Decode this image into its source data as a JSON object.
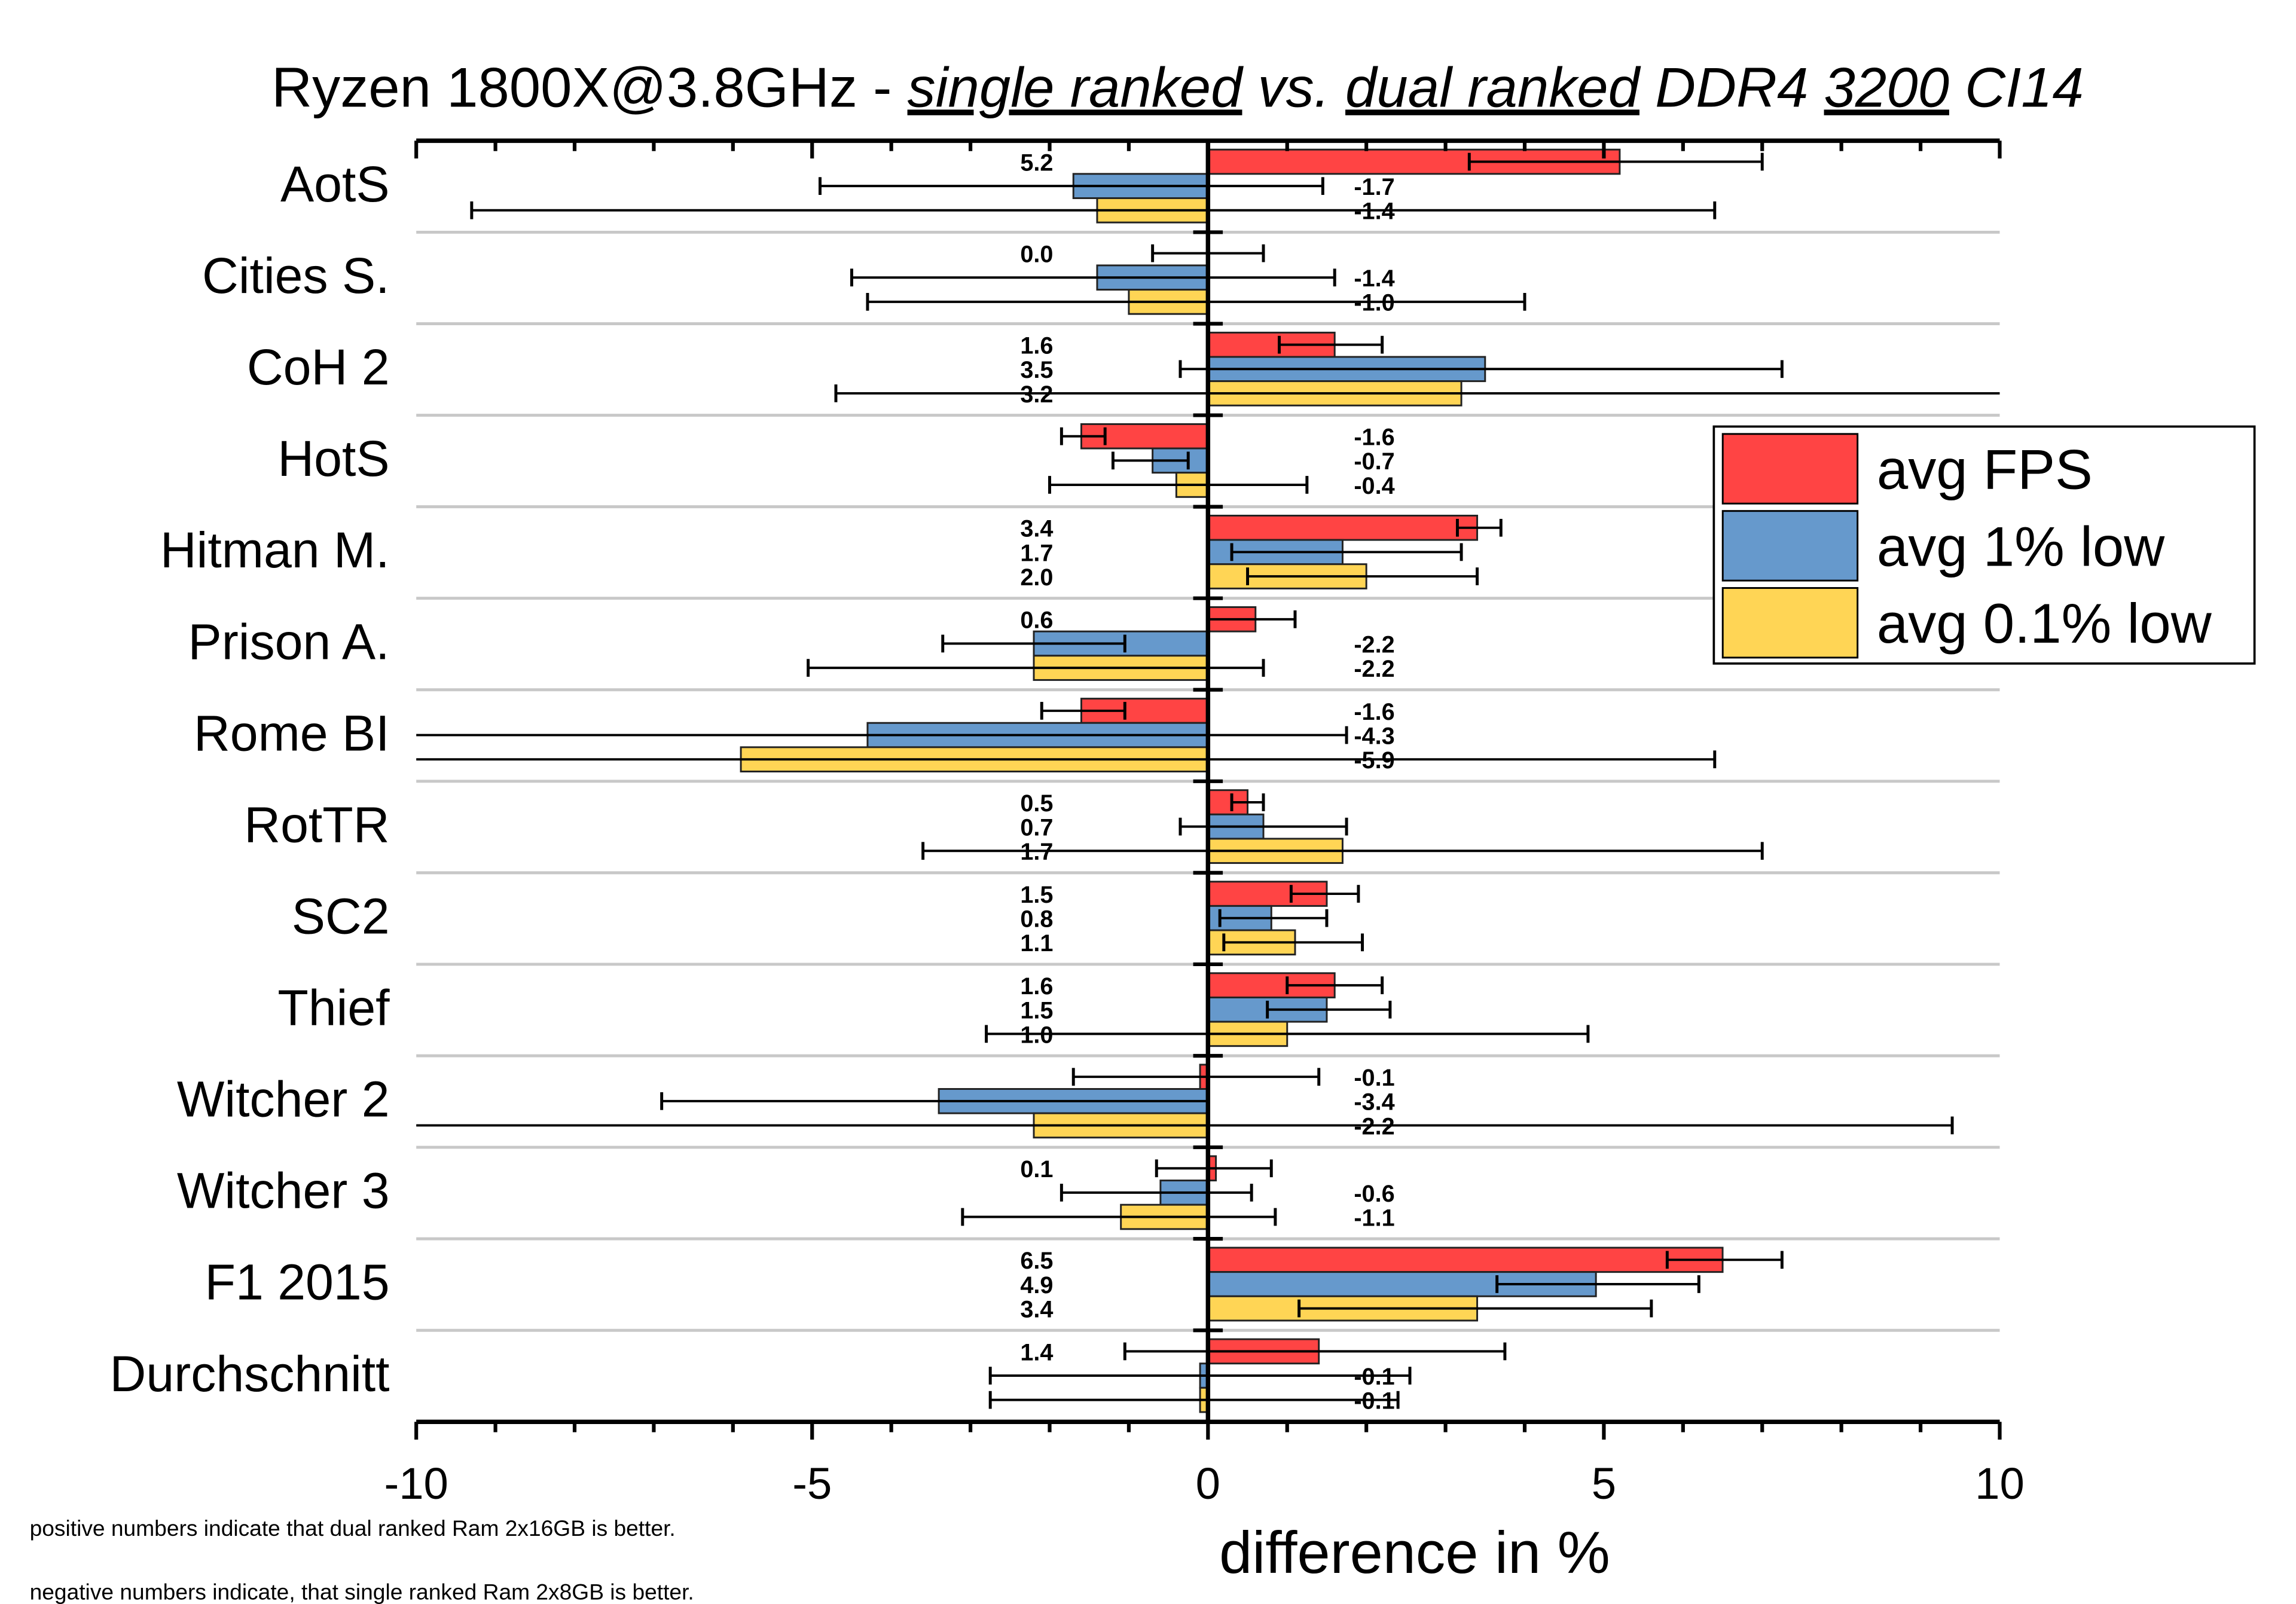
{
  "chart_data": {
    "type": "bar",
    "orientation": "horizontal",
    "title": {
      "prefix": "Ryzen 1800X@3.8GHz - ",
      "part1": "single ranked",
      "part2": " vs. ",
      "part3": "dual ranked",
      "part4": " DDR4 ",
      "part5": "3200",
      "part6": " CI14"
    },
    "xlabel": "difference in %",
    "xlim": [
      -10,
      10
    ],
    "xticks": [
      -10,
      -5,
      0,
      5,
      10
    ],
    "xtick_labels": [
      "-10",
      "-5",
      "0",
      "5",
      "10"
    ],
    "grid": "horizontal separators between categories",
    "legend_position": "right",
    "categories": [
      "AotS",
      "Cities S.",
      "CoH 2",
      "HotS",
      "Hitman M.",
      "Prison A.",
      "Rome BI",
      "RotTR",
      "SC2",
      "Thief",
      "Witcher 2",
      "Witcher 3",
      "F1 2015",
      "Durchschnitt"
    ],
    "series": [
      {
        "name": "avg FPS",
        "color": "#ff4444",
        "values": [
          5.2,
          0.0,
          1.6,
          -1.6,
          3.4,
          0.6,
          -1.6,
          0.5,
          1.5,
          1.6,
          -0.1,
          0.1,
          6.5,
          1.4
        ],
        "value_labels": [
          "5.2",
          "0.0",
          "1.6",
          "-1.6",
          "3.4",
          "0.6",
          "-1.6",
          "0.5",
          "1.5",
          "1.6",
          "-0.1",
          "0.1",
          "6.5",
          "1.4"
        ],
        "error_ranges": [
          [
            3.3,
            7.0
          ],
          [
            -0.7,
            0.7
          ],
          [
            0.9,
            2.2
          ],
          [
            -1.85,
            -1.3
          ],
          [
            3.15,
            3.7
          ],
          [
            0.0,
            1.1
          ],
          [
            -2.1,
            -1.05
          ],
          [
            0.3,
            0.7
          ],
          [
            1.05,
            1.9
          ],
          [
            1.0,
            2.2
          ],
          [
            -1.7,
            1.4
          ],
          [
            -0.65,
            0.8
          ],
          [
            5.8,
            7.25
          ],
          [
            -1.05,
            3.75
          ]
        ]
      },
      {
        "name": "avg 1% low",
        "color": "#6699cc",
        "values": [
          -1.7,
          -1.4,
          3.5,
          -0.7,
          1.7,
          -2.2,
          -4.3,
          0.7,
          0.8,
          1.5,
          -3.4,
          -0.6,
          4.9,
          -0.1
        ],
        "value_labels": [
          "-1.7",
          "-1.4",
          "3.5",
          "-0.7",
          "1.7",
          "-2.2",
          "-4.3",
          "0.7",
          "0.8",
          "1.5",
          "-3.4",
          "-0.6",
          "4.9",
          "-0.1"
        ],
        "error_ranges": [
          [
            -4.9,
            1.45
          ],
          [
            -4.5,
            1.6
          ],
          [
            -0.35,
            7.25
          ],
          [
            -1.2,
            -0.25
          ],
          [
            0.3,
            3.2
          ],
          [
            -3.35,
            -1.05
          ],
          [
            -10.5,
            1.75
          ],
          [
            -0.35,
            1.75
          ],
          [
            0.15,
            1.5
          ],
          [
            0.75,
            2.3
          ],
          [
            -6.9,
            0.0
          ],
          [
            -1.85,
            0.55
          ],
          [
            3.65,
            6.2
          ],
          [
            -2.75,
            2.55
          ]
        ]
      },
      {
        "name": "avg 0.1% low",
        "color": "#ffd555",
        "values": [
          -1.4,
          -1.0,
          3.2,
          -0.4,
          2.0,
          -2.2,
          -5.9,
          1.7,
          1.1,
          1.0,
          -2.2,
          -1.1,
          3.4,
          -0.1
        ],
        "value_labels": [
          "-1.4",
          "-1.0",
          "3.2",
          "-0.4",
          "2.0",
          "-2.2",
          "-5.9",
          "1.7",
          "1.1",
          "1.0",
          "-2.2",
          "-1.1",
          "3.4",
          "-0.1"
        ],
        "error_ranges": [
          [
            -9.3,
            6.4
          ],
          [
            -4.3,
            4.0
          ],
          [
            -4.7,
            10.5
          ],
          [
            -2.0,
            1.25
          ],
          [
            0.5,
            3.4
          ],
          [
            -5.05,
            0.7
          ],
          [
            -12,
            6.4
          ],
          [
            -3.6,
            7.0
          ],
          [
            0.2,
            1.95
          ],
          [
            -2.8,
            4.8
          ],
          [
            -10.5,
            9.4
          ],
          [
            -3.1,
            0.85
          ],
          [
            1.15,
            5.6
          ],
          [
            -2.75,
            2.4
          ]
        ]
      }
    ],
    "footnotes": [
      "positive numbers indicate that dual ranked Ram 2x16GB is better.",
      "negative numbers indicate, that single ranked Ram 2x8GB is better."
    ]
  }
}
